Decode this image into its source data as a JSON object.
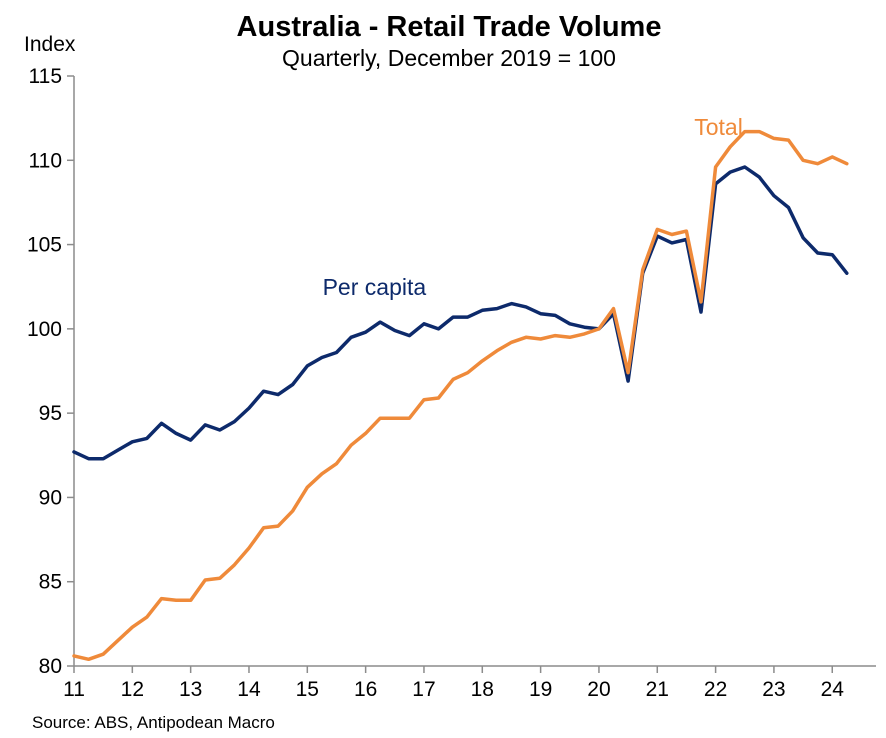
{
  "chart_data": {
    "type": "line",
    "title": "Australia - Retail Trade Volume",
    "subtitle": "Quarterly, December 2019 = 100",
    "ylabel": "Index",
    "source": "Source: ABS, Antipodean Macro",
    "ylim": [
      80,
      115
    ],
    "yticks": [
      "80",
      "85",
      "90",
      "95",
      "100",
      "105",
      "110",
      "115"
    ],
    "xlim": [
      2011.0,
      2024.75
    ],
    "xticks": [
      {
        "value": 2011,
        "label": "11"
      },
      {
        "value": 2012,
        "label": "12"
      },
      {
        "value": 2013,
        "label": "13"
      },
      {
        "value": 2014,
        "label": "14"
      },
      {
        "value": 2015,
        "label": "15"
      },
      {
        "value": 2016,
        "label": "16"
      },
      {
        "value": 2017,
        "label": "17"
      },
      {
        "value": 2018,
        "label": "18"
      },
      {
        "value": 2019,
        "label": "19"
      },
      {
        "value": 2020,
        "label": "20"
      },
      {
        "value": 2021,
        "label": "21"
      },
      {
        "value": 2022,
        "label": "22"
      },
      {
        "value": 2023,
        "label": "23"
      },
      {
        "value": 2024,
        "label": "24"
      }
    ],
    "x_start": 2011.0,
    "x_step": 0.25,
    "grid": false,
    "series": [
      {
        "name": "Per capita",
        "color": "#0d2a6b",
        "values": [
          92.7,
          92.3,
          92.3,
          92.8,
          93.3,
          93.5,
          94.4,
          93.8,
          93.4,
          94.3,
          94.0,
          94.5,
          95.3,
          96.3,
          96.1,
          96.7,
          97.8,
          98.3,
          98.6,
          99.5,
          99.8,
          100.4,
          99.9,
          99.6,
          100.3,
          100.0,
          100.7,
          100.7,
          101.1,
          101.2,
          101.5,
          101.3,
          100.9,
          100.8,
          100.3,
          100.1,
          100.0,
          100.9,
          96.9,
          103.3,
          105.5,
          105.1,
          105.3,
          101.0,
          108.6,
          109.3,
          109.6,
          109.0,
          107.9,
          107.2,
          105.4,
          104.5,
          104.4,
          103.3
        ]
      },
      {
        "name": "Total",
        "color": "#ef8a3a",
        "values": [
          80.6,
          80.4,
          80.7,
          81.5,
          82.3,
          82.9,
          84.0,
          83.9,
          83.9,
          85.1,
          85.2,
          86.0,
          87.0,
          88.2,
          88.3,
          89.2,
          90.6,
          91.4,
          92.0,
          93.1,
          93.8,
          94.7,
          94.7,
          94.7,
          95.8,
          95.9,
          97.0,
          97.4,
          98.1,
          98.7,
          99.2,
          99.5,
          99.4,
          99.6,
          99.5,
          99.7,
          100.0,
          101.2,
          97.4,
          103.5,
          105.9,
          105.6,
          105.8,
          101.6,
          109.6,
          110.8,
          111.7,
          111.7,
          111.3,
          111.2,
          110.0,
          109.8,
          110.2,
          109.8
        ]
      }
    ],
    "annotations": [
      {
        "series": "Per capita",
        "text": "Per capita",
        "x": 2016.15,
        "y": 102.0
      },
      {
        "series": "Total",
        "text": "Total",
        "x": 2022.05,
        "y": 111.5
      }
    ]
  }
}
